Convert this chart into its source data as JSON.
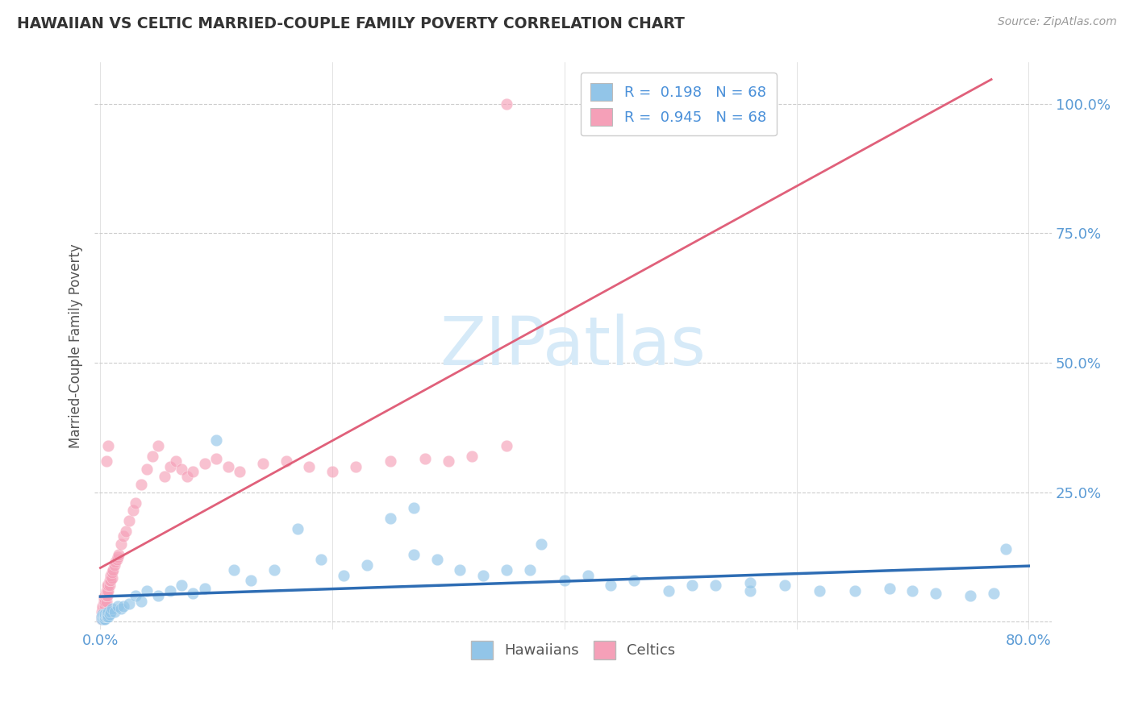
{
  "title": "HAWAIIAN VS CELTIC MARRIED-COUPLE FAMILY POVERTY CORRELATION CHART",
  "source": "Source: ZipAtlas.com",
  "ylabel": "Married-Couple Family Poverty",
  "xlim": [
    -0.005,
    0.82
  ],
  "ylim": [
    -0.015,
    1.08
  ],
  "xtick_positions": [
    0.0,
    0.8
  ],
  "xticklabels": [
    "0.0%",
    "80.0%"
  ],
  "ytick_positions": [
    0.0,
    0.25,
    0.5,
    0.75,
    1.0
  ],
  "yticklabels": [
    "",
    "25.0%",
    "50.0%",
    "75.0%",
    "100.0%"
  ],
  "hawaiian_color": "#92C5E8",
  "celtic_color": "#F5A0B8",
  "hawaiian_line_color": "#2E6DB4",
  "celtic_line_color": "#E0607A",
  "R_hawaiian": 0.198,
  "R_celtic": 0.945,
  "N": 68,
  "background_color": "#ffffff",
  "grid_color": "#cccccc",
  "title_color": "#333333",
  "tick_color": "#5B9BD5",
  "watermark_color": "#D6EAF8",
  "hawaiian_x": [
    0.001,
    0.001,
    0.002,
    0.002,
    0.002,
    0.003,
    0.003,
    0.003,
    0.004,
    0.004,
    0.004,
    0.005,
    0.005,
    0.006,
    0.006,
    0.007,
    0.007,
    0.008,
    0.009,
    0.01,
    0.012,
    0.015,
    0.018,
    0.02,
    0.025,
    0.03,
    0.035,
    0.04,
    0.05,
    0.06,
    0.07,
    0.08,
    0.09,
    0.1,
    0.115,
    0.13,
    0.15,
    0.17,
    0.19,
    0.21,
    0.23,
    0.25,
    0.27,
    0.29,
    0.31,
    0.33,
    0.35,
    0.37,
    0.4,
    0.42,
    0.44,
    0.46,
    0.49,
    0.51,
    0.53,
    0.56,
    0.59,
    0.62,
    0.65,
    0.68,
    0.7,
    0.72,
    0.75,
    0.77,
    0.27,
    0.38,
    0.78,
    0.56
  ],
  "hawaiian_y": [
    0.005,
    0.01,
    0.005,
    0.01,
    0.015,
    0.005,
    0.01,
    0.015,
    0.005,
    0.01,
    0.015,
    0.01,
    0.015,
    0.01,
    0.015,
    0.01,
    0.02,
    0.015,
    0.02,
    0.025,
    0.02,
    0.03,
    0.025,
    0.03,
    0.035,
    0.05,
    0.04,
    0.06,
    0.05,
    0.06,
    0.07,
    0.055,
    0.065,
    0.35,
    0.1,
    0.08,
    0.1,
    0.18,
    0.12,
    0.09,
    0.11,
    0.2,
    0.13,
    0.12,
    0.1,
    0.09,
    0.1,
    0.1,
    0.08,
    0.09,
    0.07,
    0.08,
    0.06,
    0.07,
    0.07,
    0.06,
    0.07,
    0.06,
    0.06,
    0.065,
    0.06,
    0.055,
    0.05,
    0.055,
    0.22,
    0.15,
    0.14,
    0.075
  ],
  "celtic_x": [
    0.001,
    0.001,
    0.001,
    0.002,
    0.002,
    0.002,
    0.002,
    0.003,
    0.003,
    0.003,
    0.003,
    0.003,
    0.004,
    0.004,
    0.004,
    0.005,
    0.005,
    0.005,
    0.006,
    0.006,
    0.006,
    0.007,
    0.007,
    0.008,
    0.008,
    0.009,
    0.009,
    0.01,
    0.01,
    0.011,
    0.012,
    0.013,
    0.014,
    0.015,
    0.016,
    0.018,
    0.02,
    0.022,
    0.025,
    0.028,
    0.03,
    0.035,
    0.04,
    0.045,
    0.05,
    0.055,
    0.06,
    0.065,
    0.07,
    0.075,
    0.08,
    0.09,
    0.1,
    0.11,
    0.12,
    0.14,
    0.16,
    0.18,
    0.2,
    0.22,
    0.25,
    0.28,
    0.3,
    0.32,
    0.35,
    0.005,
    0.007,
    0.35
  ],
  "celtic_y": [
    0.005,
    0.01,
    0.02,
    0.015,
    0.02,
    0.025,
    0.03,
    0.02,
    0.025,
    0.035,
    0.04,
    0.045,
    0.03,
    0.04,
    0.05,
    0.04,
    0.05,
    0.06,
    0.05,
    0.06,
    0.07,
    0.06,
    0.07,
    0.07,
    0.08,
    0.08,
    0.09,
    0.085,
    0.095,
    0.1,
    0.11,
    0.115,
    0.12,
    0.125,
    0.13,
    0.15,
    0.165,
    0.175,
    0.195,
    0.215,
    0.23,
    0.265,
    0.295,
    0.32,
    0.34,
    0.28,
    0.3,
    0.31,
    0.295,
    0.28,
    0.29,
    0.305,
    0.315,
    0.3,
    0.29,
    0.305,
    0.31,
    0.3,
    0.29,
    0.3,
    0.31,
    0.315,
    0.31,
    0.32,
    0.34,
    0.31,
    0.34,
    1.0
  ]
}
